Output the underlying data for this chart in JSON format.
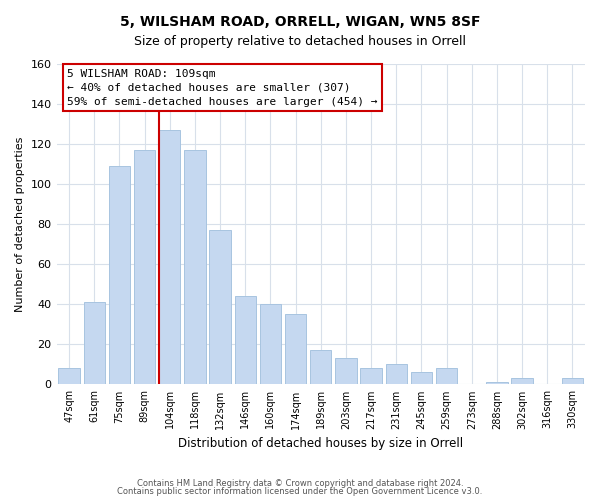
{
  "title": "5, WILSHAM ROAD, ORRELL, WIGAN, WN5 8SF",
  "subtitle": "Size of property relative to detached houses in Orrell",
  "xlabel": "Distribution of detached houses by size in Orrell",
  "ylabel": "Number of detached properties",
  "bar_labels": [
    "47sqm",
    "61sqm",
    "75sqm",
    "89sqm",
    "104sqm",
    "118sqm",
    "132sqm",
    "146sqm",
    "160sqm",
    "174sqm",
    "189sqm",
    "203sqm",
    "217sqm",
    "231sqm",
    "245sqm",
    "259sqm",
    "273sqm",
    "288sqm",
    "302sqm",
    "316sqm",
    "330sqm"
  ],
  "bar_values": [
    8,
    41,
    109,
    117,
    127,
    117,
    77,
    44,
    40,
    35,
    17,
    13,
    8,
    10,
    6,
    8,
    0,
    1,
    3,
    0,
    3
  ],
  "bar_color": "#c5d8f0",
  "bar_edge_color": "#a8c4e0",
  "highlight_index": 4,
  "property_size": 109,
  "annotation_text_line1": "5 WILSHAM ROAD: 109sqm",
  "annotation_text_line2": "← 40% of detached houses are smaller (307)",
  "annotation_text_line3": "59% of semi-detached houses are larger (454) →",
  "annotation_box_color": "#ffffff",
  "annotation_border_color": "#cc0000",
  "vline_color": "#cc0000",
  "ylim": [
    0,
    160
  ],
  "yticks": [
    0,
    20,
    40,
    60,
    80,
    100,
    120,
    140,
    160
  ],
  "footer_line1": "Contains HM Land Registry data © Crown copyright and database right 2024.",
  "footer_line2": "Contains public sector information licensed under the Open Government Licence v3.0.",
  "bg_color": "#ffffff",
  "grid_color": "#d8e0ea"
}
